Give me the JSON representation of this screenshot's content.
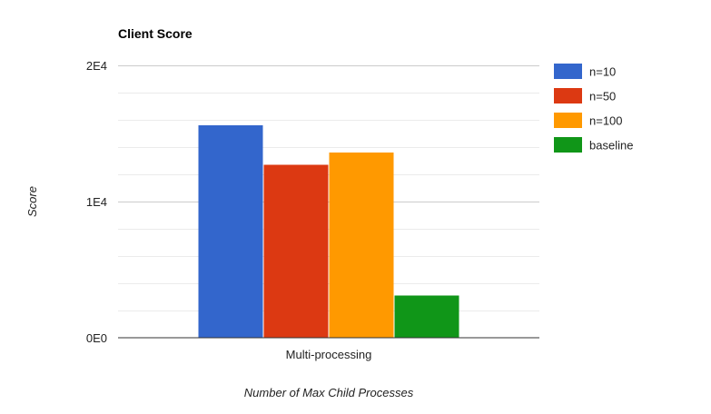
{
  "chart_data": {
    "type": "bar",
    "title": "Client Score",
    "xlabel": "Number of Max Child Processes",
    "ylabel": "Score",
    "categories": [
      "Multi-processing"
    ],
    "series": [
      {
        "name": "n=10",
        "values": [
          15600
        ],
        "color": "#3366cc"
      },
      {
        "name": "n=50",
        "values": [
          12700
        ],
        "color": "#dc3912"
      },
      {
        "name": "n=100",
        "values": [
          13600
        ],
        "color": "#ff9900"
      },
      {
        "name": "baseline",
        "values": [
          3100
        ],
        "color": "#109618"
      }
    ],
    "ylim": [
      0,
      20000
    ],
    "yticks": [
      {
        "value": 0,
        "label": "0E0"
      },
      {
        "value": 10000,
        "label": "1E4"
      },
      {
        "value": 20000,
        "label": "2E4"
      }
    ],
    "minor_gridline_step": 2000,
    "grid": true,
    "legend": "right"
  }
}
